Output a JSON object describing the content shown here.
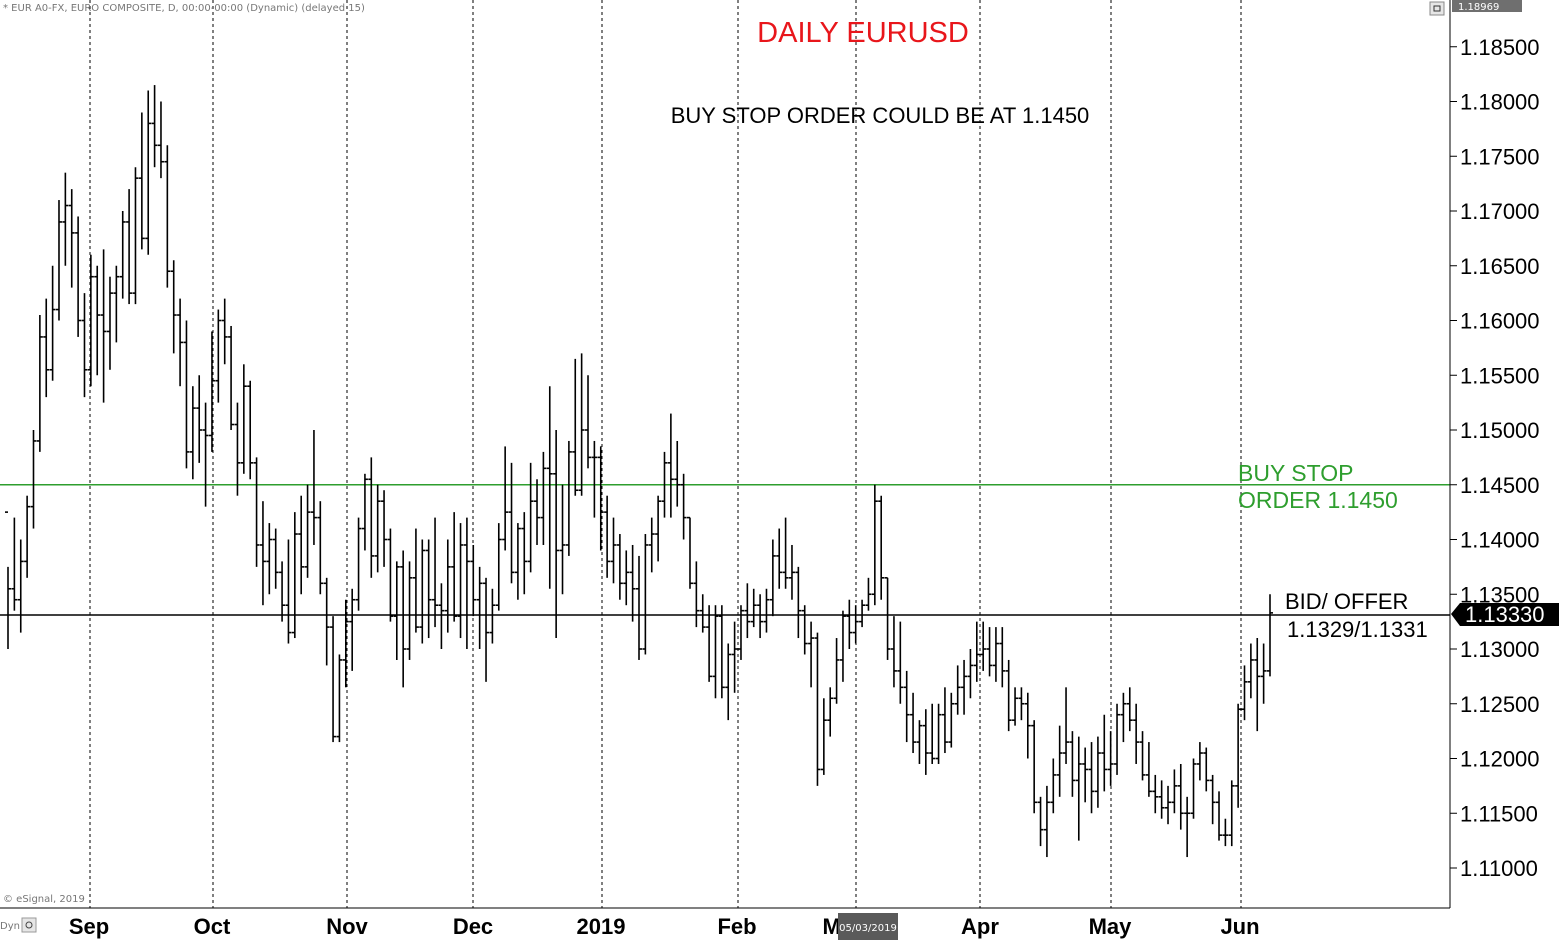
{
  "header": {
    "symbol_info": "* EUR A0-FX, EURO COMPOSITE, D, 00:00-00:00 (Dynamic) (delayed 15)",
    "top_price": "1.18969",
    "copyright": "© eSignal, 2019",
    "dyn_label": "Dyn"
  },
  "chart_data": {
    "type": "ohlc",
    "title": "DAILY EURUSD",
    "subtitle": "BUY STOP ORDER COULD BE AT 1.1450",
    "ylim": [
      1.1065,
      1.1895
    ],
    "y_ticks": [
      "1.18500",
      "1.18000",
      "1.17500",
      "1.17000",
      "1.16500",
      "1.16000",
      "1.15500",
      "1.15000",
      "1.14500",
      "1.14000",
      "1.13500",
      "1.13000",
      "1.12500",
      "1.12000",
      "1.11500",
      "1.11000"
    ],
    "x_labels": [
      "Sep",
      "Oct",
      "Nov",
      "Dec",
      "2019",
      "Feb",
      "Mar",
      "Apr",
      "May",
      "Jun"
    ],
    "crosshair_date": "05/03/2019",
    "current_price_label": "1.13330",
    "lines": [
      {
        "value": 1.145,
        "color": "#2e9e2e",
        "label_line1": "BUY STOP",
        "label_line2": "ORDER 1.1450"
      },
      {
        "value": 1.1331,
        "color": "#000000",
        "label_line1": "BID/ OFFER",
        "label_line2": "1.1329/1.1331"
      }
    ],
    "bars": [
      [
        1.1425,
        1.1375,
        1.13,
        1.1355
      ],
      [
        1.1355,
        1.142,
        1.1335,
        1.1345
      ],
      [
        1.1345,
        1.14,
        1.1315,
        1.138
      ],
      [
        1.138,
        1.144,
        1.1365,
        1.143
      ],
      [
        1.143,
        1.15,
        1.141,
        1.149
      ],
      [
        1.149,
        1.1605,
        1.148,
        1.1585
      ],
      [
        1.1585,
        1.162,
        1.153,
        1.1555
      ],
      [
        1.1555,
        1.165,
        1.1545,
        1.161
      ],
      [
        1.161,
        1.171,
        1.16,
        1.169
      ],
      [
        1.169,
        1.1735,
        1.165,
        1.1705
      ],
      [
        1.1705,
        1.172,
        1.163,
        1.168
      ],
      [
        1.168,
        1.1695,
        1.1585,
        1.16
      ],
      [
        1.16,
        1.1625,
        1.153,
        1.1555
      ],
      [
        1.1555,
        1.166,
        1.154,
        1.164
      ],
      [
        1.164,
        1.165,
        1.155,
        1.1605
      ],
      [
        1.1605,
        1.1665,
        1.1525,
        1.159
      ],
      [
        1.159,
        1.164,
        1.1555,
        1.1625
      ],
      [
        1.1625,
        1.165,
        1.158,
        1.164
      ],
      [
        1.164,
        1.17,
        1.162,
        1.169
      ],
      [
        1.169,
        1.172,
        1.1615,
        1.1625
      ],
      [
        1.1625,
        1.174,
        1.1615,
        1.173
      ],
      [
        1.173,
        1.179,
        1.1665,
        1.1675
      ],
      [
        1.1675,
        1.181,
        1.166,
        1.178
      ],
      [
        1.178,
        1.1815,
        1.174,
        1.176
      ],
      [
        1.176,
        1.18,
        1.173,
        1.1745
      ],
      [
        1.1745,
        1.176,
        1.163,
        1.1645
      ],
      [
        1.1645,
        1.1655,
        1.157,
        1.1605
      ],
      [
        1.1605,
        1.162,
        1.154,
        1.158
      ],
      [
        1.158,
        1.16,
        1.1465,
        1.148
      ],
      [
        1.148,
        1.154,
        1.1455,
        1.152
      ],
      [
        1.152,
        1.155,
        1.147,
        1.15
      ],
      [
        1.15,
        1.1525,
        1.143,
        1.1495
      ],
      [
        1.1495,
        1.159,
        1.148,
        1.1545
      ],
      [
        1.1545,
        1.161,
        1.1525,
        1.16
      ],
      [
        1.16,
        1.162,
        1.156,
        1.1585
      ],
      [
        1.1585,
        1.1595,
        1.15,
        1.1505
      ],
      [
        1.1505,
        1.1525,
        1.144,
        1.147
      ],
      [
        1.147,
        1.156,
        1.146,
        1.154
      ],
      [
        1.154,
        1.1545,
        1.1455,
        1.147
      ],
      [
        1.147,
        1.1475,
        1.1375,
        1.1395
      ],
      [
        1.1395,
        1.1435,
        1.134,
        1.138
      ],
      [
        1.138,
        1.1415,
        1.135,
        1.14
      ],
      [
        1.14,
        1.141,
        1.1355,
        1.137
      ],
      [
        1.137,
        1.138,
        1.1325,
        1.134
      ],
      [
        1.134,
        1.14,
        1.1305,
        1.1315
      ],
      [
        1.1315,
        1.1425,
        1.131,
        1.1405
      ],
      [
        1.1405,
        1.144,
        1.135,
        1.1375
      ],
      [
        1.1375,
        1.145,
        1.1365,
        1.1425
      ],
      [
        1.1425,
        1.15,
        1.1395,
        1.142
      ],
      [
        1.142,
        1.1435,
        1.135,
        1.136
      ],
      [
        1.136,
        1.1365,
        1.1285,
        1.132
      ],
      [
        1.132,
        1.133,
        1.1215,
        1.122
      ],
      [
        1.122,
        1.1295,
        1.1215,
        1.129
      ],
      [
        1.129,
        1.1345,
        1.1265,
        1.1325
      ],
      [
        1.1325,
        1.1355,
        1.128,
        1.1345
      ],
      [
        1.1345,
        1.142,
        1.1335,
        1.141
      ],
      [
        1.141,
        1.146,
        1.139,
        1.1455
      ],
      [
        1.1455,
        1.1475,
        1.1365,
        1.1385
      ],
      [
        1.1385,
        1.145,
        1.137,
        1.1435
      ],
      [
        1.1435,
        1.1445,
        1.1375,
        1.14
      ],
      [
        1.14,
        1.141,
        1.1325,
        1.133
      ],
      [
        1.133,
        1.138,
        1.129,
        1.1375
      ],
      [
        1.1375,
        1.139,
        1.1265,
        1.13
      ],
      [
        1.13,
        1.138,
        1.129,
        1.1365
      ],
      [
        1.1365,
        1.141,
        1.1315,
        1.132
      ],
      [
        1.132,
        1.14,
        1.1305,
        1.139
      ],
      [
        1.139,
        1.14,
        1.131,
        1.1345
      ],
      [
        1.1345,
        1.142,
        1.132,
        1.134
      ],
      [
        1.134,
        1.136,
        1.13,
        1.1335
      ],
      [
        1.1335,
        1.14,
        1.1315,
        1.1375
      ],
      [
        1.1375,
        1.1425,
        1.1325,
        1.133
      ],
      [
        1.133,
        1.1415,
        1.131,
        1.1395
      ],
      [
        1.1395,
        1.142,
        1.13,
        1.138
      ],
      [
        1.138,
        1.1395,
        1.133,
        1.1345
      ],
      [
        1.1345,
        1.1375,
        1.13,
        1.136
      ],
      [
        1.136,
        1.1365,
        1.127,
        1.1315
      ],
      [
        1.1315,
        1.1355,
        1.1305,
        1.134
      ],
      [
        1.134,
        1.1415,
        1.1335,
        1.14
      ],
      [
        1.14,
        1.1485,
        1.139,
        1.1425
      ],
      [
        1.1425,
        1.147,
        1.136,
        1.137
      ],
      [
        1.137,
        1.1415,
        1.1345,
        1.141
      ],
      [
        1.141,
        1.1425,
        1.135,
        1.138
      ],
      [
        1.138,
        1.147,
        1.137,
        1.1435
      ],
      [
        1.1435,
        1.1455,
        1.1395,
        1.142
      ],
      [
        1.142,
        1.148,
        1.1395,
        1.1465
      ],
      [
        1.1465,
        1.154,
        1.1355,
        1.146
      ],
      [
        1.146,
        1.15,
        1.131,
        1.139
      ],
      [
        1.139,
        1.145,
        1.135,
        1.1395
      ],
      [
        1.1395,
        1.149,
        1.1385,
        1.148
      ],
      [
        1.148,
        1.1565,
        1.144,
        1.1445
      ],
      [
        1.1445,
        1.157,
        1.144,
        1.15
      ],
      [
        1.15,
        1.155,
        1.1465,
        1.1475
      ],
      [
        1.1475,
        1.149,
        1.142,
        1.1475
      ],
      [
        1.1475,
        1.1485,
        1.139,
        1.1425
      ],
      [
        1.1425,
        1.144,
        1.1365,
        1.138
      ],
      [
        1.138,
        1.142,
        1.136,
        1.1395
      ],
      [
        1.1395,
        1.1405,
        1.1345,
        1.136
      ],
      [
        1.136,
        1.139,
        1.134,
        1.137
      ],
      [
        1.137,
        1.1395,
        1.1325,
        1.1355
      ],
      [
        1.1355,
        1.1385,
        1.129,
        1.13
      ],
      [
        1.13,
        1.1405,
        1.1295,
        1.1395
      ],
      [
        1.1395,
        1.142,
        1.137,
        1.1405
      ],
      [
        1.1405,
        1.144,
        1.138,
        1.1435
      ],
      [
        1.1435,
        1.148,
        1.142,
        1.147
      ],
      [
        1.147,
        1.1515,
        1.142,
        1.1455
      ],
      [
        1.1455,
        1.149,
        1.143,
        1.145
      ],
      [
        1.145,
        1.146,
        1.14,
        1.142
      ],
      [
        1.142,
        1.142,
        1.1355,
        1.136
      ],
      [
        1.136,
        1.138,
        1.132,
        1.1335
      ],
      [
        1.1335,
        1.135,
        1.1315,
        1.132
      ],
      [
        1.132,
        1.134,
        1.127,
        1.1275
      ],
      [
        1.1275,
        1.134,
        1.1255,
        1.133
      ],
      [
        1.133,
        1.134,
        1.1255,
        1.1265
      ],
      [
        1.1265,
        1.1305,
        1.1235,
        1.1295
      ],
      [
        1.1295,
        1.1325,
        1.126,
        1.13
      ],
      [
        1.13,
        1.134,
        1.129,
        1.1335
      ],
      [
        1.1335,
        1.136,
        1.131,
        1.1325
      ],
      [
        1.1325,
        1.1355,
        1.132,
        1.134
      ],
      [
        1.134,
        1.135,
        1.131,
        1.1325
      ],
      [
        1.1325,
        1.1355,
        1.1315,
        1.1345
      ],
      [
        1.1345,
        1.14,
        1.133,
        1.1385
      ],
      [
        1.1385,
        1.141,
        1.1355,
        1.137
      ],
      [
        1.137,
        1.142,
        1.1355,
        1.1365
      ],
      [
        1.1365,
        1.1395,
        1.1345,
        1.137
      ],
      [
        1.137,
        1.1375,
        1.131,
        1.1335
      ],
      [
        1.1335,
        1.134,
        1.1295,
        1.1305
      ],
      [
        1.1305,
        1.1325,
        1.1265,
        1.131
      ],
      [
        1.131,
        1.1315,
        1.1175,
        1.119
      ],
      [
        1.119,
        1.1255,
        1.1185,
        1.1235
      ],
      [
        1.1235,
        1.1265,
        1.122,
        1.1255
      ],
      [
        1.1255,
        1.131,
        1.125,
        1.129
      ],
      [
        1.129,
        1.1335,
        1.127,
        1.133
      ],
      [
        1.133,
        1.1345,
        1.13,
        1.1315
      ],
      [
        1.1315,
        1.134,
        1.1305,
        1.1325
      ],
      [
        1.1325,
        1.1345,
        1.132,
        1.134
      ],
      [
        1.134,
        1.1365,
        1.1335,
        1.135
      ],
      [
        1.135,
        1.145,
        1.134,
        1.1435
      ],
      [
        1.1435,
        1.144,
        1.1345,
        1.1365
      ],
      [
        1.1365,
        1.1365,
        1.129,
        1.13
      ],
      [
        1.13,
        1.133,
        1.1265,
        1.128
      ],
      [
        1.128,
        1.1325,
        1.125,
        1.1265
      ],
      [
        1.1265,
        1.128,
        1.1215,
        1.124
      ],
      [
        1.124,
        1.126,
        1.1205,
        1.1215
      ],
      [
        1.1215,
        1.1235,
        1.1195,
        1.123
      ],
      [
        1.123,
        1.1245,
        1.1185,
        1.1205
      ],
      [
        1.1205,
        1.125,
        1.1195,
        1.12
      ],
      [
        1.12,
        1.125,
        1.1195,
        1.124
      ],
      [
        1.124,
        1.1265,
        1.1205,
        1.1215
      ],
      [
        1.1215,
        1.126,
        1.121,
        1.125
      ],
      [
        1.125,
        1.1285,
        1.124,
        1.1265
      ],
      [
        1.1265,
        1.129,
        1.124,
        1.1275
      ],
      [
        1.1275,
        1.13,
        1.1255,
        1.1285
      ],
      [
        1.1285,
        1.1325,
        1.127,
        1.1295
      ],
      [
        1.1295,
        1.1325,
        1.128,
        1.13
      ],
      [
        1.13,
        1.132,
        1.1275,
        1.1285
      ],
      [
        1.1285,
        1.132,
        1.127,
        1.1305
      ],
      [
        1.1305,
        1.132,
        1.1265,
        1.128
      ],
      [
        1.128,
        1.129,
        1.1225,
        1.1235
      ],
      [
        1.1235,
        1.1265,
        1.123,
        1.1255
      ],
      [
        1.1255,
        1.1265,
        1.1235,
        1.125
      ],
      [
        1.125,
        1.126,
        1.12,
        1.123
      ],
      [
        1.123,
        1.1235,
        1.115,
        1.116
      ],
      [
        1.116,
        1.1165,
        1.112,
        1.1135
      ],
      [
        1.1135,
        1.1175,
        1.111,
        1.116
      ],
      [
        1.116,
        1.12,
        1.115,
        1.1185
      ],
      [
        1.1185,
        1.123,
        1.1165,
        1.1205
      ],
      [
        1.1205,
        1.1265,
        1.1195,
        1.1215
      ],
      [
        1.1215,
        1.1225,
        1.1165,
        1.118
      ],
      [
        1.118,
        1.122,
        1.1125,
        1.1195
      ],
      [
        1.1195,
        1.121,
        1.116,
        1.119
      ],
      [
        1.119,
        1.1215,
        1.115,
        1.117
      ],
      [
        1.117,
        1.122,
        1.1155,
        1.1205
      ],
      [
        1.1205,
        1.124,
        1.117,
        1.119
      ],
      [
        1.119,
        1.1225,
        1.1175,
        1.1195
      ],
      [
        1.1195,
        1.125,
        1.1185,
        1.124
      ],
      [
        1.124,
        1.126,
        1.1215,
        1.125
      ],
      [
        1.125,
        1.1265,
        1.1225,
        1.1235
      ],
      [
        1.1235,
        1.125,
        1.1195,
        1.1215
      ],
      [
        1.1215,
        1.1225,
        1.118,
        1.1185
      ],
      [
        1.1185,
        1.1215,
        1.1165,
        1.117
      ],
      [
        1.117,
        1.1185,
        1.115,
        1.1165
      ],
      [
        1.1165,
        1.118,
        1.1145,
        1.1155
      ],
      [
        1.1155,
        1.1175,
        1.114,
        1.116
      ],
      [
        1.116,
        1.119,
        1.115,
        1.1175
      ],
      [
        1.1175,
        1.1195,
        1.1135,
        1.115
      ],
      [
        1.115,
        1.1165,
        1.111,
        1.115
      ],
      [
        1.115,
        1.12,
        1.1145,
        1.1195
      ],
      [
        1.1195,
        1.1215,
        1.118,
        1.1205
      ],
      [
        1.1205,
        1.121,
        1.117,
        1.118
      ],
      [
        1.118,
        1.1185,
        1.114,
        1.116
      ],
      [
        1.116,
        1.117,
        1.1125,
        1.113
      ],
      [
        1.113,
        1.1145,
        1.112,
        1.113
      ],
      [
        1.113,
        1.118,
        1.112,
        1.1175
      ],
      [
        1.1175,
        1.125,
        1.1155,
        1.1245
      ],
      [
        1.1245,
        1.1285,
        1.1235,
        1.127
      ],
      [
        1.127,
        1.1305,
        1.1255,
        1.129
      ],
      [
        1.129,
        1.131,
        1.1225,
        1.1275
      ],
      [
        1.1275,
        1.1305,
        1.125,
        1.128
      ],
      [
        1.128,
        1.135,
        1.1275,
        1.1333
      ]
    ]
  }
}
